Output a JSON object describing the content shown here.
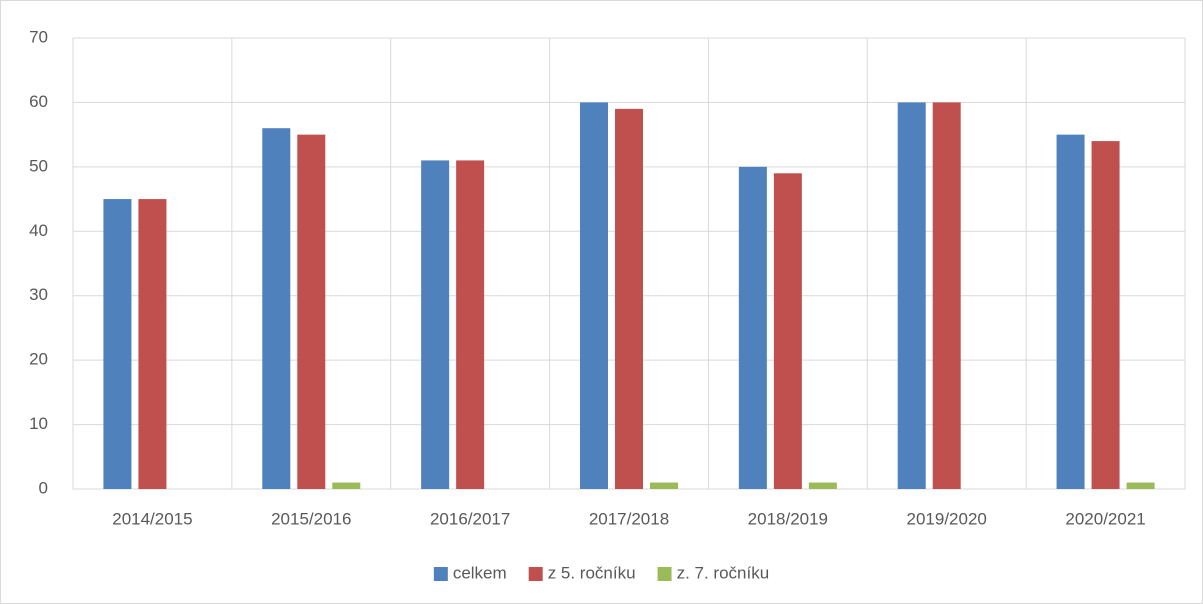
{
  "chart_data": {
    "type": "bar",
    "categories": [
      "2014/2015",
      "2015/2016",
      "2016/2017",
      "2017/2018",
      "2018/2019",
      "2019/2020",
      "2020/2021"
    ],
    "series": [
      {
        "name": "celkem",
        "color": "#4f81bd",
        "values": [
          45,
          56,
          51,
          60,
          50,
          60,
          55
        ]
      },
      {
        "name": "z 5. ročníku",
        "color": "#c0504d",
        "values": [
          45,
          55,
          51,
          59,
          49,
          60,
          54
        ]
      },
      {
        "name": "z. 7. ročníku",
        "color": "#9bbb59",
        "values": [
          0,
          1,
          0,
          1,
          1,
          0,
          1
        ]
      }
    ],
    "ylim": [
      0,
      70
    ],
    "yticks": [
      0,
      10,
      20,
      30,
      40,
      50,
      60,
      70
    ],
    "grid": true,
    "legend": "bottom"
  }
}
